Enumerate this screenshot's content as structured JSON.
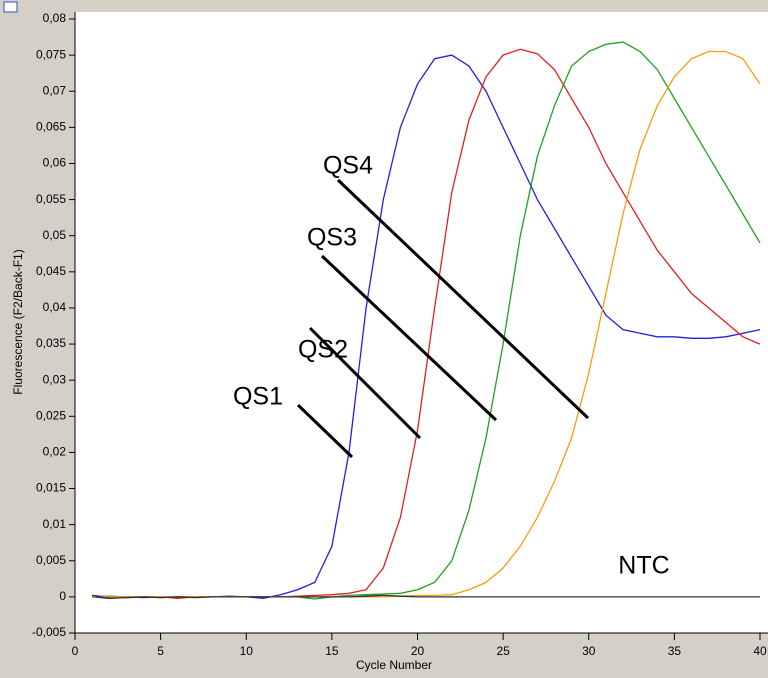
{
  "chart_data": {
    "type": "line",
    "ylabel": "Fluorescence (F2/Back-F1)",
    "xlabel": "Cycle Number",
    "x": [
      1,
      2,
      3,
      4,
      5,
      6,
      7,
      8,
      9,
      10,
      11,
      12,
      13,
      14,
      15,
      16,
      17,
      18,
      19,
      20,
      21,
      22,
      23,
      24,
      25,
      26,
      27,
      28,
      29,
      30,
      31,
      32,
      33,
      34,
      35,
      36,
      37,
      38,
      39,
      40
    ],
    "xlim": [
      0,
      40
    ],
    "xticks": [
      0,
      5,
      10,
      15,
      20,
      25,
      30,
      35,
      40
    ],
    "ylim": [
      -0.005,
      0.08
    ],
    "yticks": [
      {
        "value": -0.005,
        "label": "-0,005"
      },
      0,
      {
        "value": 0.005,
        "label": "0,005"
      },
      {
        "value": 0.01,
        "label": "0,01"
      },
      {
        "value": 0.015,
        "label": "0,015"
      },
      {
        "value": 0.02,
        "label": "0,02"
      },
      {
        "value": 0.025,
        "label": "0,025"
      },
      {
        "value": 0.03,
        "label": "0,03"
      },
      {
        "value": 0.035,
        "label": "0,035"
      },
      {
        "value": 0.04,
        "label": "0,04"
      },
      {
        "value": 0.045,
        "label": "0,045"
      },
      {
        "value": 0.05,
        "label": "0,05"
      },
      {
        "value": 0.055,
        "label": "0,055"
      },
      {
        "value": 0.06,
        "label": "0,06"
      },
      {
        "value": 0.065,
        "label": "0,065"
      },
      {
        "value": 0.07,
        "label": "0,07"
      },
      {
        "value": 0.075,
        "label": "0,075"
      },
      {
        "value": 0.08,
        "label": "0,08"
      }
    ],
    "series": [
      {
        "name": "QS1",
        "color": "#2020e0",
        "values": [
          0,
          -0.0002,
          0,
          -0.0001,
          0,
          0,
          0,
          0,
          0.0001,
          0,
          -0.0002,
          0.0003,
          0.001,
          0.002,
          0.007,
          0.02,
          0.04,
          0.055,
          0.065,
          0.071,
          0.0745,
          0.075,
          0.0735,
          0.07,
          0.065,
          0.06,
          0.055,
          0.051,
          0.047,
          0.043,
          0.039,
          0.037,
          0.0365,
          0.036,
          0.036,
          0.0358,
          0.0358,
          0.036,
          0.0365,
          0.037
        ]
      },
      {
        "name": "QS2",
        "color": "#e02020",
        "values": [
          0.0002,
          0,
          -0.0001,
          0,
          0,
          -0.0002,
          0,
          0,
          0,
          0,
          0,
          0,
          0.0001,
          0.0002,
          0.0003,
          0.0005,
          0.001,
          0.004,
          0.011,
          0.023,
          0.04,
          0.056,
          0.066,
          0.072,
          0.075,
          0.0758,
          0.0752,
          0.073,
          0.069,
          0.065,
          0.06,
          0.056,
          0.052,
          0.048,
          0.045,
          0.042,
          0.04,
          0.038,
          0.036,
          0.035
        ]
      },
      {
        "name": "QS3",
        "color": "#20a020",
        "values": [
          0,
          0.0001,
          0,
          0,
          -0.0001,
          0,
          0,
          0,
          0,
          0,
          0,
          0,
          0,
          -0.0003,
          0,
          0.0002,
          0.0003,
          0.0004,
          0.0005,
          0.001,
          0.002,
          0.005,
          0.012,
          0.022,
          0.035,
          0.05,
          0.061,
          0.068,
          0.0735,
          0.0755,
          0.0765,
          0.0768,
          0.0755,
          0.073,
          0.069,
          0.065,
          0.061,
          0.057,
          0.053,
          0.049
        ]
      },
      {
        "name": "QS4",
        "color": "#ff9a10",
        "values": [
          0.0001,
          0,
          0,
          0,
          0,
          0,
          0,
          0,
          0,
          0,
          0,
          0,
          0,
          0,
          0,
          0,
          0,
          0,
          0.0001,
          0.0002,
          0.0002,
          0.0003,
          0.001,
          0.002,
          0.004,
          0.007,
          0.011,
          0.016,
          0.022,
          0.031,
          0.042,
          0.053,
          0.062,
          0.068,
          0.072,
          0.0745,
          0.0755,
          0.0755,
          0.0745,
          0.071
        ]
      },
      {
        "name": "NTC",
        "color": "#303030",
        "values": [
          0.0002,
          -0.0002,
          -0.0001,
          0,
          -0.0001,
          0,
          -0.0001,
          0,
          0,
          0,
          0,
          0,
          0,
          0,
          0,
          0,
          0.0001,
          0.0002,
          0.0001,
          0,
          0,
          0,
          0,
          0,
          0,
          0,
          0,
          0,
          0,
          0,
          0,
          0,
          0,
          0,
          0,
          0,
          0,
          0,
          0,
          0
        ]
      }
    ]
  }
}
